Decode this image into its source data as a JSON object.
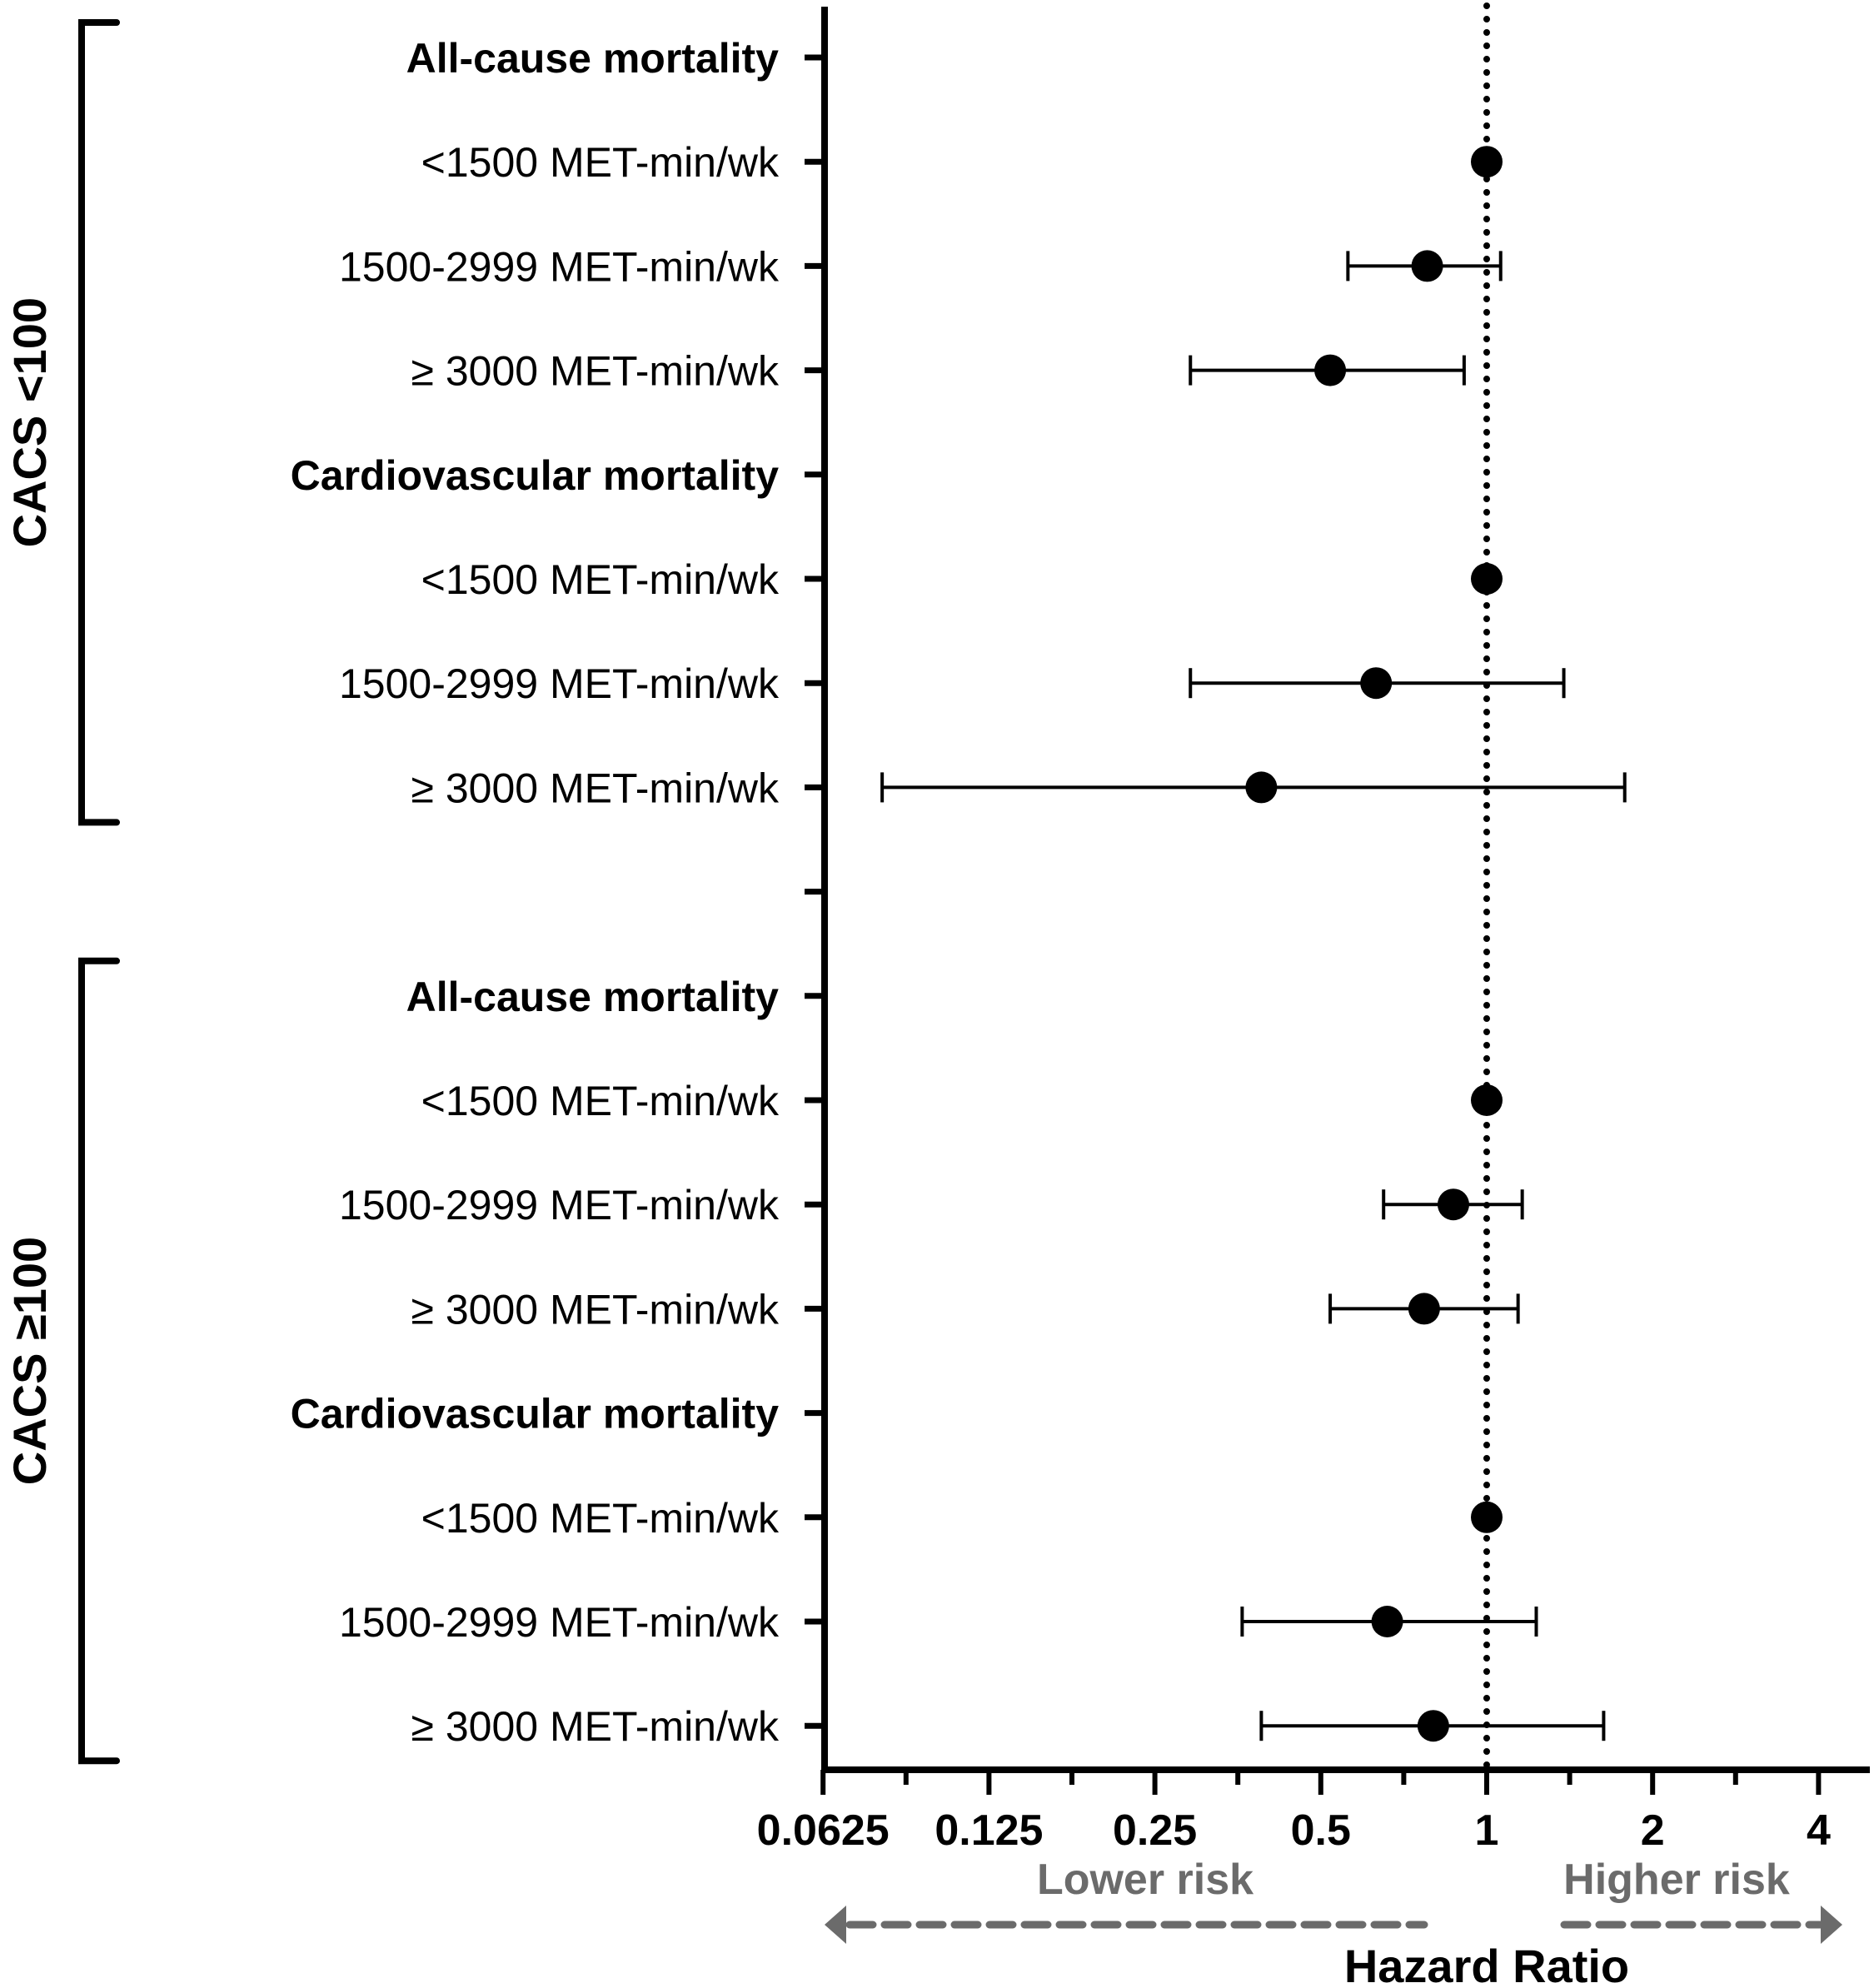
{
  "chart_data": {
    "type": "forest",
    "xlabel": "Hazard Ratio",
    "xscale": "log2",
    "xlim": [
      0.0625,
      5.5
    ],
    "xticks": [
      0.0625,
      0.125,
      0.25,
      0.5,
      1,
      2,
      4
    ],
    "xtick_labels": [
      "0.0625",
      "0.125",
      "0.25",
      "0.5",
      "1",
      "2",
      "4"
    ],
    "reference_line": 1,
    "annotations": {
      "lower": "Lower risk",
      "higher": "Higher risk"
    },
    "colors": {
      "marks": "#000000",
      "annotation": "#6b6b6b"
    },
    "groups": [
      {
        "label": "CACS <100",
        "rows": [
          {
            "label": "All-cause mortality",
            "header": true
          },
          {
            "label": "<1500 MET-min/wk",
            "hr": 1.0
          },
          {
            "label": "1500-2999 MET-min/wk",
            "hr": 0.78,
            "lo": 0.56,
            "hi": 1.06
          },
          {
            "label": "≥ 3000 MET-min/wk",
            "hr": 0.52,
            "lo": 0.29,
            "hi": 0.91
          },
          {
            "label": "Cardiovascular mortality",
            "header": true
          },
          {
            "label": "<1500 MET-min/wk",
            "hr": 1.0
          },
          {
            "label": "1500-2999 MET-min/wk",
            "hr": 0.63,
            "lo": 0.29,
            "hi": 1.38
          },
          {
            "label": "≥ 3000 MET-min/wk",
            "hr": 0.39,
            "lo": 0.08,
            "hi": 1.78
          }
        ]
      },
      {
        "label": "CACS ≥100",
        "rows": [
          {
            "label": "All-cause mortality",
            "header": true
          },
          {
            "label": "<1500 MET-min/wk",
            "hr": 1.0
          },
          {
            "label": "1500-2999 MET-min/wk",
            "hr": 0.87,
            "lo": 0.65,
            "hi": 1.16
          },
          {
            "label": "≥ 3000 MET-min/wk",
            "hr": 0.77,
            "lo": 0.52,
            "hi": 1.14
          },
          {
            "label": "Cardiovascular mortality",
            "header": true
          },
          {
            "label": "<1500 MET-min/wk",
            "hr": 1.0
          },
          {
            "label": "1500-2999 MET-min/wk",
            "hr": 0.66,
            "lo": 0.36,
            "hi": 1.23
          },
          {
            "label": "≥ 3000 MET-min/wk",
            "hr": 0.8,
            "lo": 0.39,
            "hi": 1.63
          }
        ]
      }
    ]
  }
}
